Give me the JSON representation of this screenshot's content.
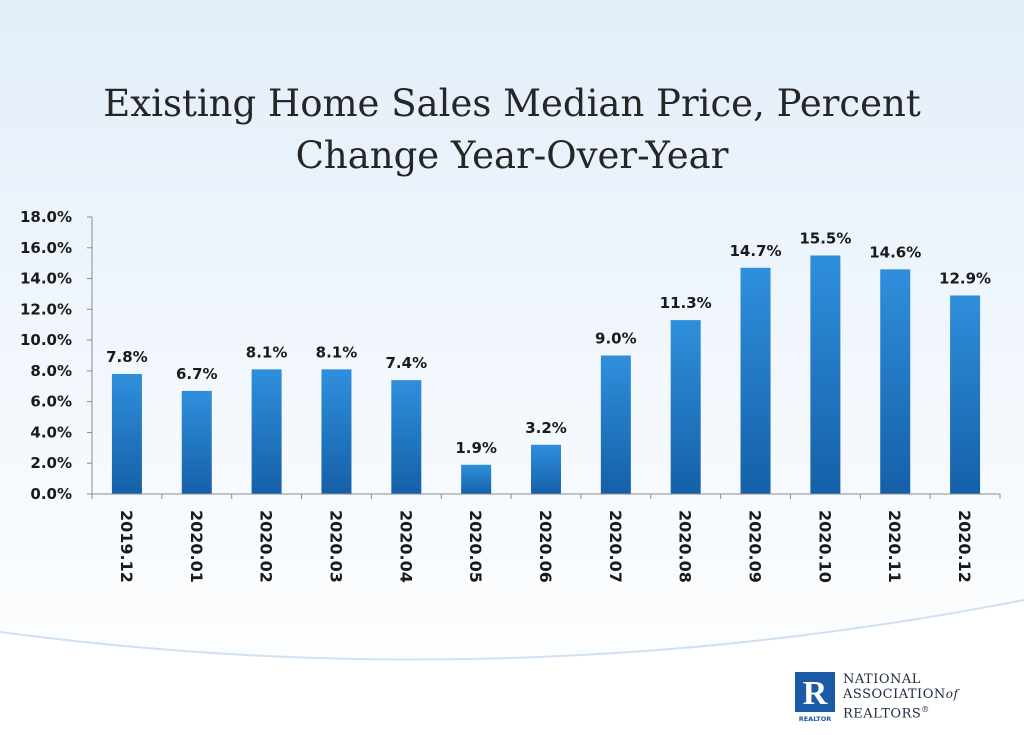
{
  "chart_data": {
    "type": "bar",
    "title_lines": [
      "Existing Home Sales Median Price, Percent",
      "Change Year-Over-Year"
    ],
    "categories": [
      "2019.12",
      "2020.01",
      "2020.02",
      "2020.03",
      "2020.04",
      "2020.05",
      "2020.06",
      "2020.07",
      "2020.08",
      "2020.09",
      "2020.10",
      "2020.11",
      "2020.12"
    ],
    "values": [
      7.8,
      6.7,
      8.1,
      8.1,
      7.4,
      1.9,
      3.2,
      9.0,
      11.3,
      14.7,
      15.5,
      14.6,
      12.9
    ],
    "data_labels": [
      "7.8%",
      "6.7%",
      "8.1%",
      "8.1%",
      "7.4%",
      "1.9%",
      "3.2%",
      "9.0%",
      "11.3%",
      "14.7%",
      "15.5%",
      "14.6%",
      "12.9%"
    ],
    "y_ticks": [
      "0.0%",
      "2.0%",
      "4.0%",
      "6.0%",
      "8.0%",
      "10.0%",
      "12.0%",
      "14.0%",
      "16.0%",
      "18.0%"
    ],
    "ylim": [
      0,
      18
    ],
    "xlabel": "",
    "ylabel": "",
    "grid": false,
    "legend": "none",
    "bar_color_top": "#2f8fdc",
    "bar_color_bottom": "#1560a8"
  },
  "logo": {
    "mark": "R",
    "mark_caption": "REALTOR",
    "line1": "NATIONAL",
    "line2": "ASSOCIATION",
    "line2_suffix": "of",
    "line3": "REALTORS",
    "line3_suffix": "®",
    "brand_color": "#1b5aa6"
  }
}
